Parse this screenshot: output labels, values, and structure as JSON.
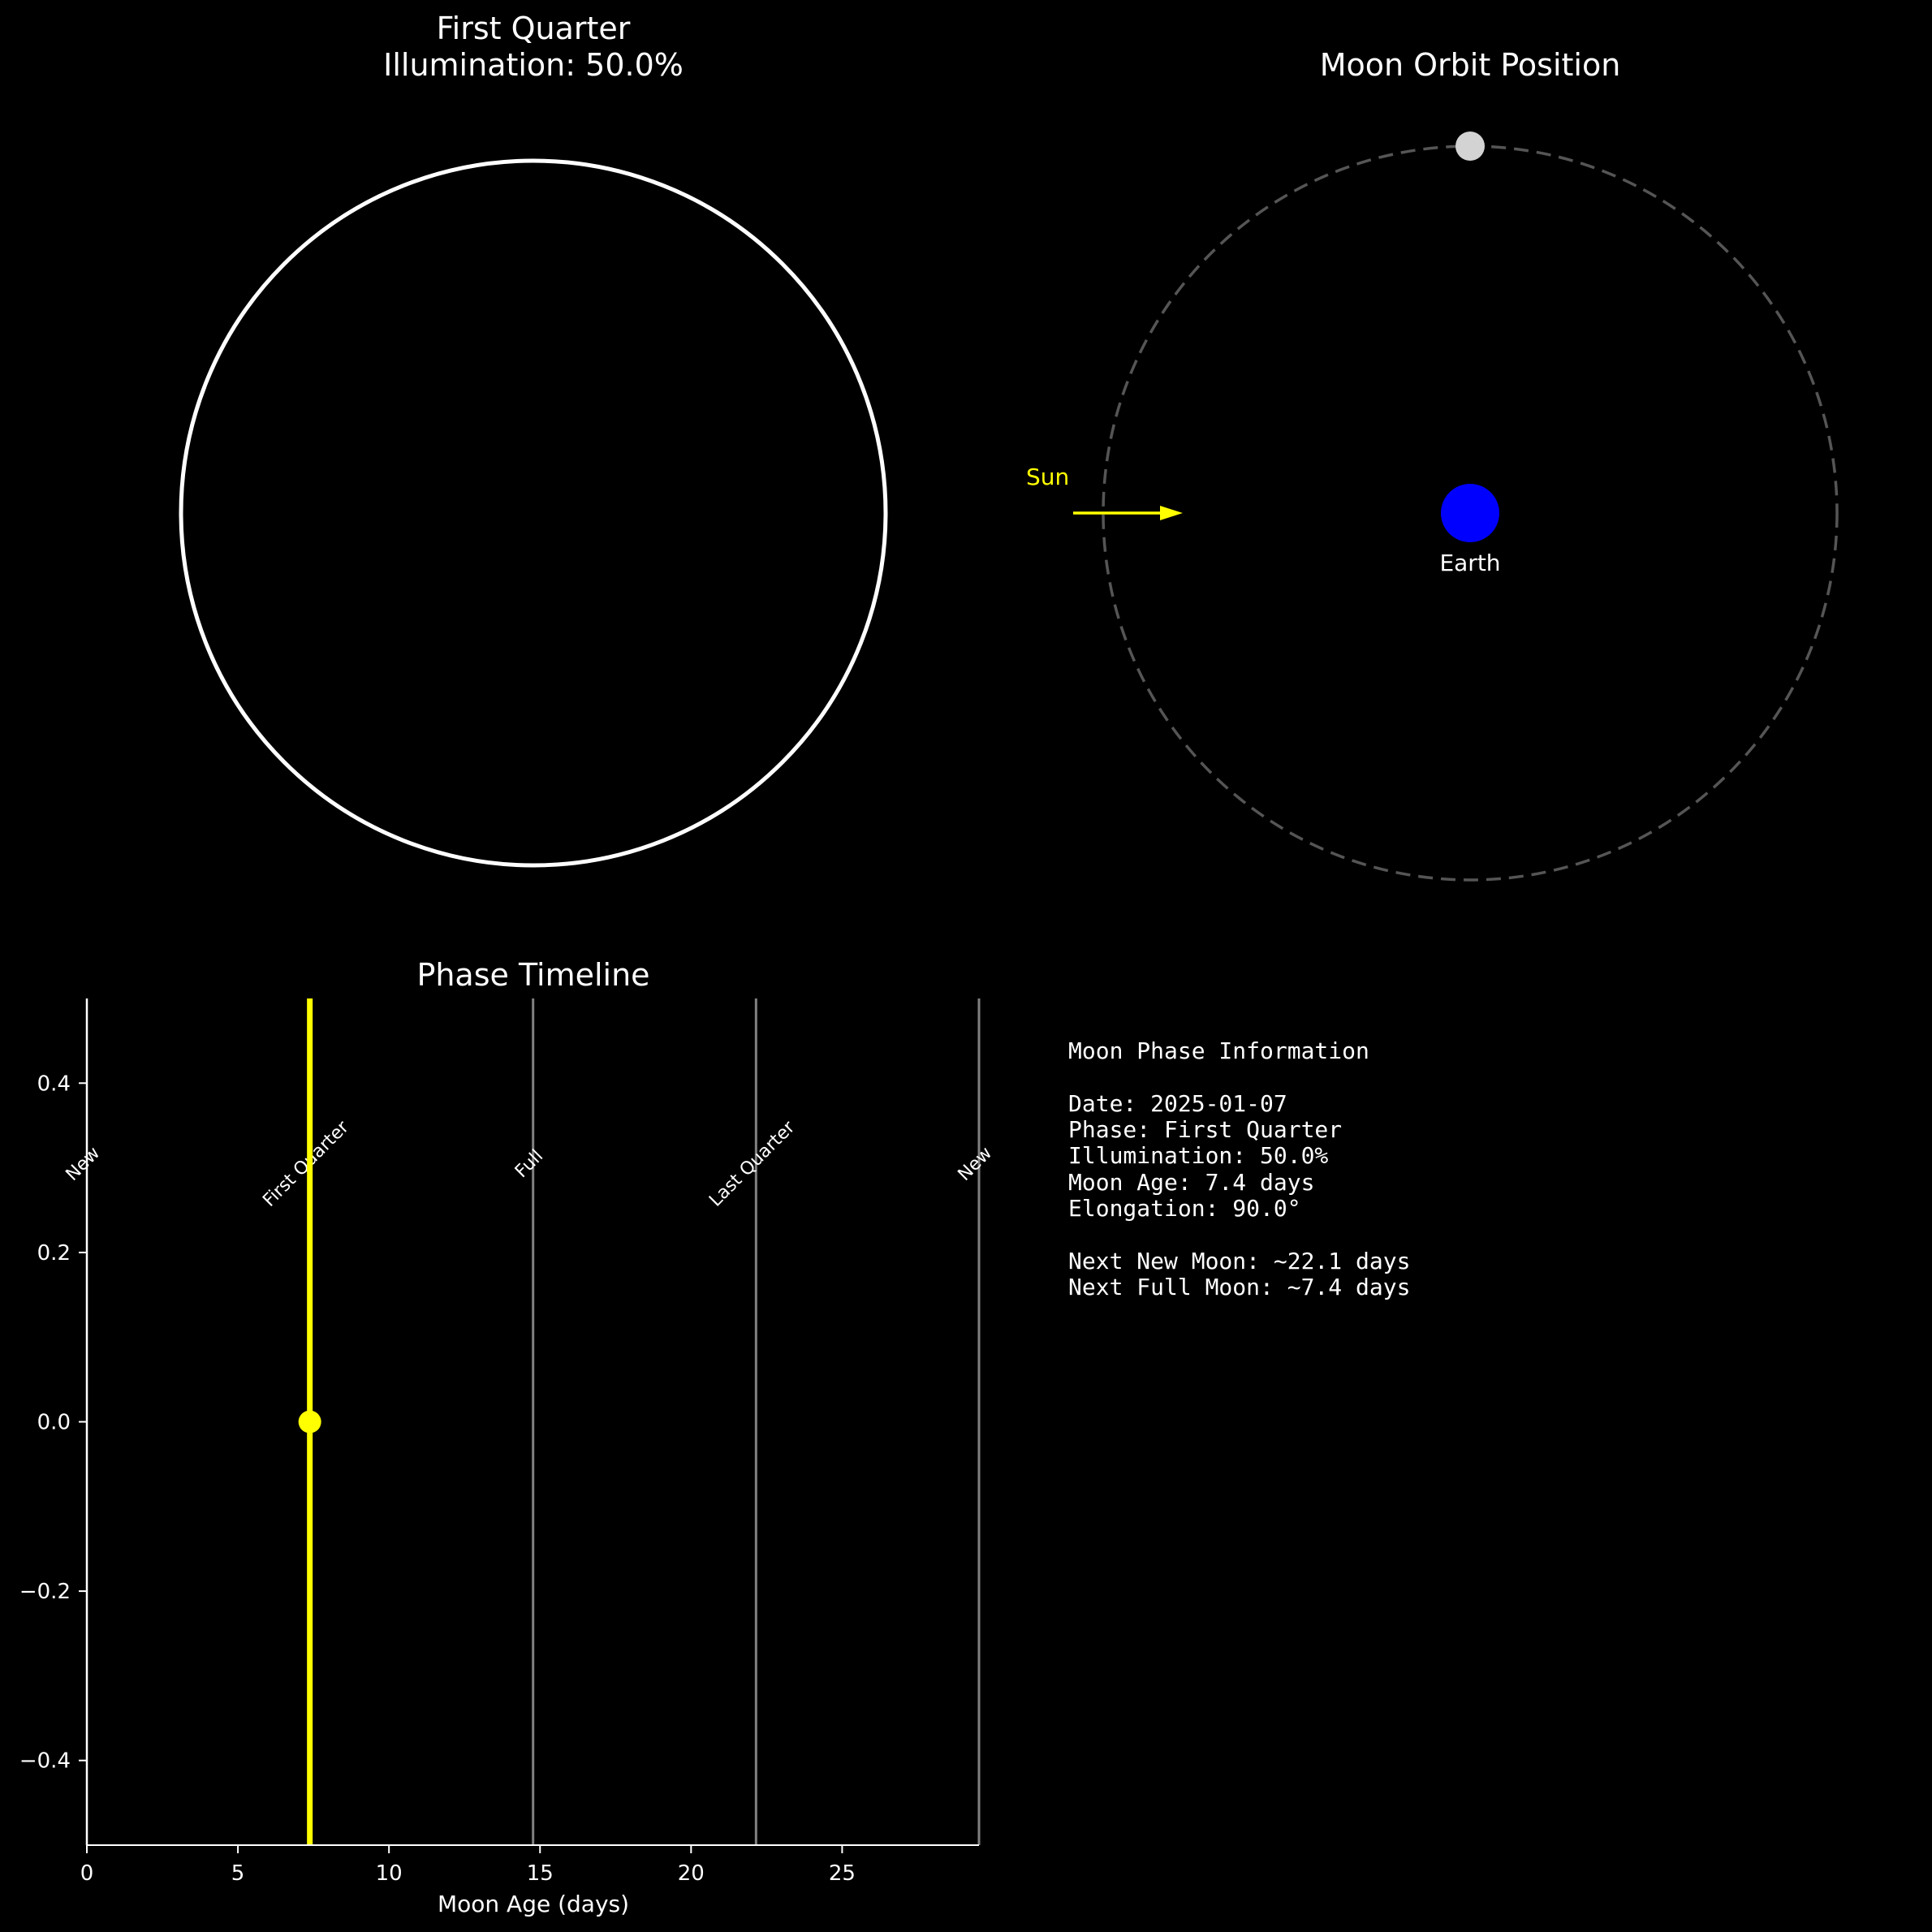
{
  "colors": {
    "background": "#000000",
    "text": "#ffffff",
    "sun": "#ffff00",
    "earth": "#0000ff",
    "moon": "#d3d3d3",
    "orbit": "#555555",
    "phase_line": "#808080",
    "current": "#ffff00"
  },
  "chart_data": [
    {
      "type": "diagram",
      "title": "First Quarter",
      "subtitle": "Illumination: 50.0%",
      "illumination": 0.5,
      "outline_color": "#ffffff"
    },
    {
      "type": "scatter",
      "title": "Moon Orbit Position",
      "sun_label": "Sun",
      "earth_label": "Earth",
      "elongation_deg": 90.0
    },
    {
      "type": "line",
      "title": "Phase Timeline",
      "xlabel": "Moon Age (days)",
      "ylabel": "",
      "xlim": [
        0,
        29.53
      ],
      "ylim": [
        -0.5,
        0.5
      ],
      "xticks": [
        "0",
        "5",
        "10",
        "15",
        "20",
        "25"
      ],
      "yticks": [
        "−0.4",
        "−0.2",
        "0.0",
        "0.2",
        "0.4"
      ],
      "phases": [
        {
          "name": "New",
          "x": 0
        },
        {
          "name": "First Quarter",
          "x": 7.38
        },
        {
          "name": "Full",
          "x": 14.77
        },
        {
          "name": "Last Quarter",
          "x": 22.15
        },
        {
          "name": "New",
          "x": 29.53
        }
      ],
      "current": {
        "x": 7.38,
        "y": 0
      }
    }
  ],
  "info": {
    "heading": "Moon Phase Information",
    "lines": [
      "Date: 2025-01-07",
      "Phase: First Quarter",
      "Illumination: 50.0%",
      "Moon Age: 7.4 days",
      "Elongation: 90.0°"
    ],
    "next_lines": [
      "Next New Moon: ~22.1 days",
      "Next Full Moon: ~7.4 days"
    ]
  }
}
